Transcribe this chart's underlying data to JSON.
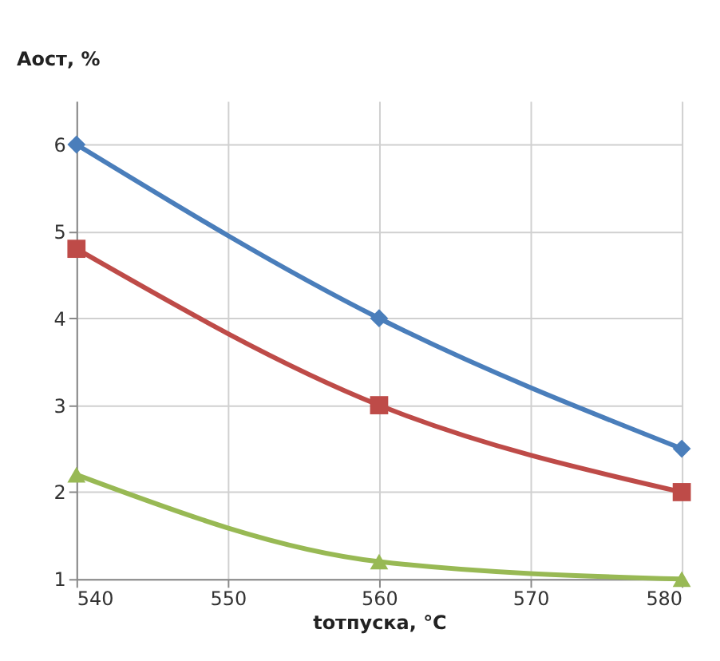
{
  "chart_data": {
    "type": "line",
    "xlabel": "tотпуска, °C",
    "ylabel": "Аост, %",
    "x": [
      540,
      560,
      580
    ],
    "series": [
      {
        "color": "#4a7ebb",
        "marker": "diamond",
        "values": [
          6,
          4,
          2.5
        ]
      },
      {
        "color": "#be4b48",
        "marker": "square",
        "values": [
          4.8,
          3,
          2
        ]
      },
      {
        "color": "#98b954",
        "marker": "triangle",
        "values": [
          2.2,
          1.2,
          1.0
        ]
      }
    ],
    "xlim": [
      540,
      580
    ],
    "xticks": [
      540,
      550,
      560,
      570,
      580
    ],
    "ylim": [
      1,
      6.5
    ],
    "yticks": [
      1,
      2,
      3,
      4,
      5,
      6
    ],
    "grid": true,
    "legend": false,
    "line_style": "solid"
  }
}
